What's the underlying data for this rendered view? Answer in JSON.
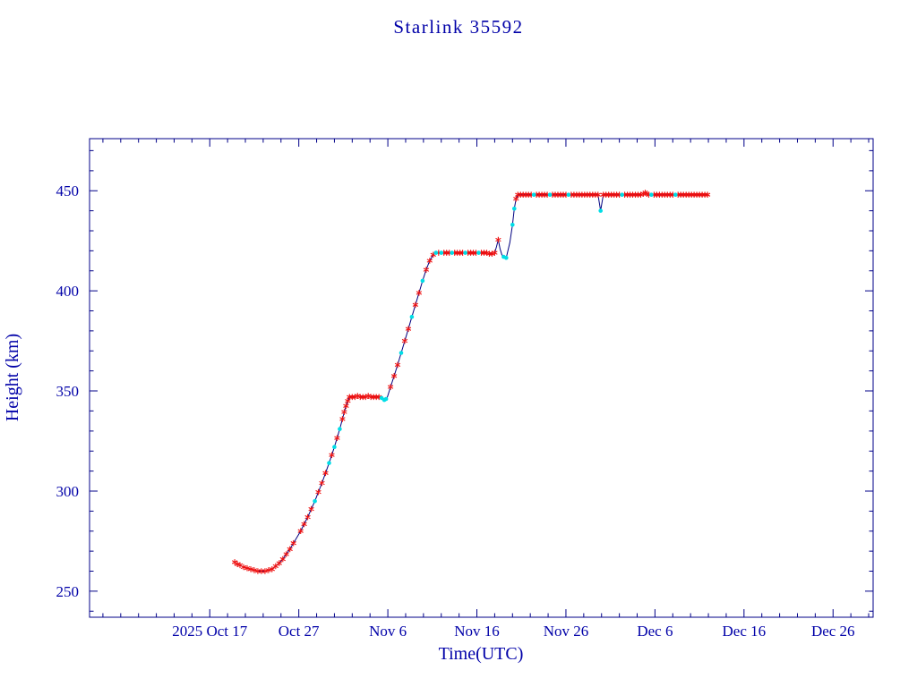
{
  "chart_data": {
    "type": "line",
    "title": "Starlink 35592",
    "xlabel": "Time(UTC)",
    "ylabel": "Height (km)",
    "xlim": [
      -13.5,
      74.5
    ],
    "ylim": [
      237,
      476
    ],
    "grid": false,
    "legend": "none",
    "x_ticks": [
      {
        "day": 0,
        "label": "2025 Oct 17"
      },
      {
        "day": 10,
        "label": "Oct 27"
      },
      {
        "day": 20,
        "label": "Nov 6"
      },
      {
        "day": 30,
        "label": "Nov 16"
      },
      {
        "day": 40,
        "label": "Nov 26"
      },
      {
        "day": 50,
        "label": "Dec 6"
      },
      {
        "day": 60,
        "label": "Dec 16"
      },
      {
        "day": 70,
        "label": "Dec 26"
      }
    ],
    "x_minor_step": 2,
    "y_ticks": [
      {
        "value": 250,
        "label": "250"
      },
      {
        "value": 300,
        "label": "300"
      },
      {
        "value": 350,
        "label": "350"
      },
      {
        "value": 400,
        "label": "400"
      },
      {
        "value": 450,
        "label": "450"
      }
    ],
    "y_minor_step": 10,
    "colors": {
      "axis": "#000088",
      "line": "#000080",
      "text": "#0000a8",
      "marker_red": "#ee1111",
      "marker_cyan": "#00dde6"
    },
    "series": [
      {
        "name": "height",
        "marker_legend": {
          "r": "red asterisk sample",
          "c": "cyan dot sample"
        },
        "points": [
          [
            2.8,
            264.5,
            "r"
          ],
          [
            3.1,
            263.5,
            "r"
          ],
          [
            3.4,
            263,
            "r"
          ],
          [
            3.8,
            262,
            "r"
          ],
          [
            4.2,
            261.5,
            "r"
          ],
          [
            4.6,
            261,
            "r"
          ],
          [
            5.0,
            260.5,
            "r"
          ],
          [
            5.4,
            260,
            "r"
          ],
          [
            5.8,
            260,
            "r"
          ],
          [
            6.2,
            260,
            "r"
          ],
          [
            6.6,
            260.5,
            "r"
          ],
          [
            7.0,
            261,
            "r"
          ],
          [
            7.4,
            262.5,
            "r"
          ],
          [
            7.8,
            264,
            "r"
          ],
          [
            8.2,
            266,
            "r"
          ],
          [
            8.6,
            268.5,
            "r"
          ],
          [
            9.0,
            271,
            "r"
          ],
          [
            9.4,
            274,
            "r"
          ],
          [
            9.8,
            277,
            0
          ],
          [
            10.2,
            280,
            "r"
          ],
          [
            10.6,
            283.5,
            "r"
          ],
          [
            11.0,
            287,
            "r"
          ],
          [
            11.4,
            291,
            "r"
          ],
          [
            11.8,
            295,
            "c"
          ],
          [
            12.2,
            299.5,
            "r"
          ],
          [
            12.6,
            304,
            "r"
          ],
          [
            13.0,
            309,
            "r"
          ],
          [
            13.4,
            314,
            "c"
          ],
          [
            13.7,
            318,
            "r"
          ],
          [
            14.0,
            322,
            "c"
          ],
          [
            14.3,
            326.5,
            "r"
          ],
          [
            14.6,
            331,
            "c"
          ],
          [
            14.9,
            336,
            "r"
          ],
          [
            15.1,
            339.5,
            "r"
          ],
          [
            15.3,
            342.5,
            "r"
          ],
          [
            15.5,
            345,
            "r"
          ],
          [
            15.7,
            347,
            "r"
          ],
          [
            16.0,
            347,
            "r"
          ],
          [
            16.3,
            347,
            "r"
          ],
          [
            16.6,
            347.5,
            "r"
          ],
          [
            16.9,
            347,
            "r"
          ],
          [
            17.2,
            347,
            "r"
          ],
          [
            17.5,
            347,
            "r"
          ],
          [
            17.8,
            347.5,
            "r"
          ],
          [
            18.1,
            347,
            "r"
          ],
          [
            18.4,
            347,
            "r"
          ],
          [
            18.7,
            347,
            "r"
          ],
          [
            19.0,
            347,
            "r"
          ],
          [
            19.3,
            346.5,
            "c"
          ],
          [
            19.6,
            345.5,
            "c"
          ],
          [
            19.8,
            346,
            "c"
          ],
          [
            19.95,
            347,
            0
          ],
          [
            20.3,
            352,
            "r"
          ],
          [
            20.7,
            357.5,
            "r"
          ],
          [
            21.1,
            363,
            "r"
          ],
          [
            21.5,
            369,
            "c"
          ],
          [
            21.9,
            375,
            "r"
          ],
          [
            22.3,
            381,
            "r"
          ],
          [
            22.7,
            387,
            "c"
          ],
          [
            23.1,
            393,
            "r"
          ],
          [
            23.5,
            399,
            "r"
          ],
          [
            23.9,
            405,
            "c"
          ],
          [
            24.3,
            410.5,
            "r"
          ],
          [
            24.7,
            415,
            "r"
          ],
          [
            25.1,
            418,
            "r"
          ],
          [
            25.4,
            419,
            "c"
          ],
          [
            25.7,
            419,
            "r"
          ],
          [
            26.0,
            419,
            "c"
          ],
          [
            26.3,
            419,
            "r"
          ],
          [
            26.6,
            419,
            "r"
          ],
          [
            26.9,
            419,
            "r"
          ],
          [
            27.2,
            419,
            "c"
          ],
          [
            27.5,
            419,
            "r"
          ],
          [
            27.8,
            419,
            "r"
          ],
          [
            28.1,
            419,
            "r"
          ],
          [
            28.4,
            419,
            "r"
          ],
          [
            28.7,
            419,
            "c"
          ],
          [
            29.0,
            419,
            "r"
          ],
          [
            29.3,
            419,
            "r"
          ],
          [
            29.6,
            419,
            "r"
          ],
          [
            29.9,
            419,
            "r"
          ],
          [
            30.2,
            419,
            "c"
          ],
          [
            30.5,
            419,
            "r"
          ],
          [
            30.8,
            419,
            "r"
          ],
          [
            31.1,
            419,
            "r"
          ],
          [
            31.4,
            418.5,
            "r"
          ],
          [
            31.7,
            418.5,
            "r"
          ],
          [
            32.0,
            419,
            "r"
          ],
          [
            32.2,
            422,
            0
          ],
          [
            32.4,
            425.5,
            "r"
          ],
          [
            32.6,
            421,
            0
          ],
          [
            32.8,
            418,
            0
          ],
          [
            33.0,
            417,
            "c"
          ],
          [
            33.3,
            416.5,
            "c"
          ],
          [
            33.7,
            424,
            0
          ],
          [
            34.0,
            433,
            "c"
          ],
          [
            34.2,
            441,
            "c"
          ],
          [
            34.4,
            446,
            "r"
          ],
          [
            34.6,
            448,
            "r"
          ],
          [
            34.9,
            448,
            "r"
          ],
          [
            35.2,
            448,
            "r"
          ],
          [
            35.5,
            448,
            "r"
          ],
          [
            35.8,
            448,
            "r"
          ],
          [
            36.1,
            448,
            "r"
          ],
          [
            36.4,
            448,
            "c"
          ],
          [
            36.7,
            448,
            "r"
          ],
          [
            37.0,
            448,
            "r"
          ],
          [
            37.3,
            448,
            "r"
          ],
          [
            37.6,
            448,
            "r"
          ],
          [
            37.9,
            448,
            "r"
          ],
          [
            38.2,
            448,
            "c"
          ],
          [
            38.5,
            448,
            "r"
          ],
          [
            38.8,
            448,
            "r"
          ],
          [
            39.1,
            448,
            "r"
          ],
          [
            39.4,
            448,
            "r"
          ],
          [
            39.7,
            448,
            "r"
          ],
          [
            40.0,
            448,
            "r"
          ],
          [
            40.3,
            448,
            "c"
          ],
          [
            40.6,
            448,
            "r"
          ],
          [
            40.9,
            448,
            "r"
          ],
          [
            41.2,
            448,
            "r"
          ],
          [
            41.5,
            448,
            "r"
          ],
          [
            41.8,
            448,
            "r"
          ],
          [
            42.1,
            448,
            "r"
          ],
          [
            42.4,
            448,
            "r"
          ],
          [
            42.7,
            448,
            "r"
          ],
          [
            43.0,
            448,
            "r"
          ],
          [
            43.3,
            448,
            "r"
          ],
          [
            43.6,
            448,
            "r"
          ],
          [
            43.9,
            440,
            "c"
          ],
          [
            44.2,
            448,
            "r"
          ],
          [
            44.5,
            448,
            "r"
          ],
          [
            44.8,
            448,
            "r"
          ],
          [
            45.1,
            448,
            "r"
          ],
          [
            45.4,
            448,
            "r"
          ],
          [
            45.7,
            448,
            "r"
          ],
          [
            46.0,
            448,
            "r"
          ],
          [
            46.3,
            448,
            "c"
          ],
          [
            46.6,
            448,
            "r"
          ],
          [
            46.9,
            448,
            "r"
          ],
          [
            47.2,
            448,
            "r"
          ],
          [
            47.5,
            448,
            "r"
          ],
          [
            47.8,
            448,
            "r"
          ],
          [
            48.1,
            448,
            "r"
          ],
          [
            48.4,
            448,
            "r"
          ],
          [
            48.7,
            448.5,
            "r"
          ],
          [
            48.9,
            449,
            "r"
          ],
          [
            49.1,
            448.5,
            "r"
          ],
          [
            49.3,
            448,
            "r"
          ],
          [
            49.6,
            448,
            "c"
          ],
          [
            49.9,
            448,
            "r"
          ],
          [
            50.2,
            448,
            "r"
          ],
          [
            50.5,
            448,
            "r"
          ],
          [
            50.8,
            448,
            "r"
          ],
          [
            51.1,
            448,
            "r"
          ],
          [
            51.4,
            448,
            "r"
          ],
          [
            51.7,
            448,
            "r"
          ],
          [
            52.0,
            448,
            "r"
          ],
          [
            52.3,
            448,
            "c"
          ],
          [
            52.6,
            448,
            "r"
          ],
          [
            52.9,
            448,
            "r"
          ],
          [
            53.2,
            448,
            "r"
          ],
          [
            53.5,
            448,
            "r"
          ],
          [
            53.8,
            448,
            "r"
          ],
          [
            54.1,
            448,
            "r"
          ],
          [
            54.4,
            448,
            "r"
          ],
          [
            54.7,
            448,
            "r"
          ],
          [
            55.0,
            448,
            "r"
          ],
          [
            55.3,
            448,
            "r"
          ],
          [
            55.6,
            448,
            "r"
          ],
          [
            55.9,
            448,
            "r"
          ]
        ]
      }
    ]
  }
}
